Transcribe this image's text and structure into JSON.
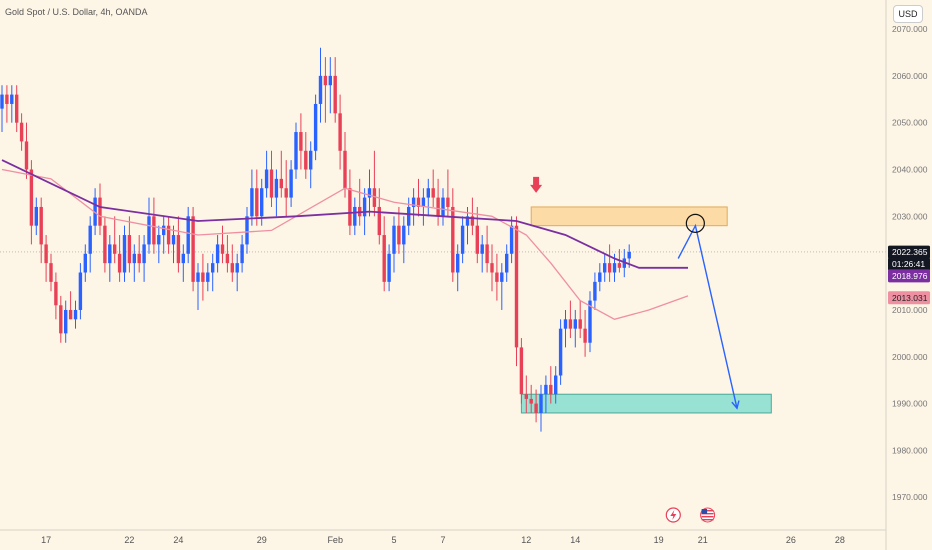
{
  "header": {
    "title": "Gold Spot / U.S. Dollar, 4h, OANDA",
    "currency_button": "USD"
  },
  "chart_data": {
    "type": "candlestick",
    "title": "Gold Spot / U.S. Dollar, 4h, OANDA",
    "ylim": [
      1963,
      2073
    ],
    "y_ticks": [
      1970,
      1980,
      1990,
      2000,
      2010,
      2020,
      2030,
      2040,
      2050,
      2060,
      2070
    ],
    "y_tick_labels": [
      "1970.000",
      "1980.000",
      "1990.000",
      "2000.000",
      "2010.000",
      "2020.000",
      "2030.000",
      "2040.000",
      "2050.000",
      "2060.000",
      "2070.000"
    ],
    "x_ticks": [
      {
        "label": "17",
        "bar": 9
      },
      {
        "label": "22",
        "bar": 26
      },
      {
        "label": "24",
        "bar": 36
      },
      {
        "label": "29",
        "bar": 53
      },
      {
        "label": "Feb",
        "bar": 68
      },
      {
        "label": "5",
        "bar": 80
      },
      {
        "label": "7",
        "bar": 90
      },
      {
        "label": "12",
        "bar": 107
      },
      {
        "label": "14",
        "bar": 117
      },
      {
        "label": "19",
        "bar": 134
      },
      {
        "label": "21",
        "bar": 143
      },
      {
        "label": "26",
        "bar": 161
      },
      {
        "label": "28",
        "bar": 171
      }
    ],
    "grid": false,
    "colors": {
      "up": "#2962ff",
      "down": "#e84157",
      "ma_slow": "#7b2fa0",
      "ma_fast": "#ef8fa2",
      "resistance_zone": "#fcd9a0",
      "support_zone": "#8ee0d2",
      "projection": "#2962ff",
      "marker": "#e84157"
    },
    "price_labels": [
      {
        "text": "2022.365",
        "value": 2022.365,
        "bg": "#131722",
        "fg": "#ffffff"
      },
      {
        "text": "01:26:41",
        "value": 2022.365,
        "bg": "#131722",
        "fg": "#ffffff",
        "sub": true
      },
      {
        "text": "2018.976",
        "value": 2018.976,
        "bg": "#7b2fa0",
        "fg": "#ffffff"
      },
      {
        "text": "2013.031",
        "value": 2013.031,
        "bg": "#ef8fa2",
        "fg": "#222222"
      }
    ],
    "candles": [
      [
        2053,
        2058,
        2048,
        2056
      ],
      [
        2056,
        2058,
        2050,
        2054
      ],
      [
        2054,
        2058,
        2050,
        2056
      ],
      [
        2056,
        2058,
        2048,
        2050
      ],
      [
        2050,
        2052,
        2044,
        2046
      ],
      [
        2046,
        2050,
        2038,
        2040
      ],
      [
        2040,
        2042,
        2024,
        2028
      ],
      [
        2028,
        2034,
        2026,
        2032
      ],
      [
        2032,
        2034,
        2020,
        2024
      ],
      [
        2024,
        2026,
        2016,
        2020
      ],
      [
        2020,
        2022,
        2014,
        2016
      ],
      [
        2016,
        2018,
        2008,
        2011
      ],
      [
        2011,
        2013,
        2003,
        2005
      ],
      [
        2005,
        2012,
        2003,
        2010
      ],
      [
        2010,
        2014,
        2008,
        2008
      ],
      [
        2008,
        2012,
        2006,
        2010
      ],
      [
        2010,
        2020,
        2008,
        2018
      ],
      [
        2018,
        2024,
        2016,
        2022
      ],
      [
        2022,
        2030,
        2018,
        2028
      ],
      [
        2028,
        2036,
        2026,
        2034
      ],
      [
        2034,
        2037,
        2026,
        2028
      ],
      [
        2028,
        2030,
        2018,
        2020
      ],
      [
        2020,
        2026,
        2016,
        2024
      ],
      [
        2024,
        2030,
        2020,
        2022
      ],
      [
        2022,
        2026,
        2016,
        2018
      ],
      [
        2018,
        2028,
        2016,
        2026
      ],
      [
        2026,
        2030,
        2018,
        2020
      ],
      [
        2020,
        2024,
        2016,
        2022
      ],
      [
        2022,
        2026,
        2018,
        2020
      ],
      [
        2020,
        2026,
        2016,
        2024
      ],
      [
        2024,
        2034,
        2022,
        2030
      ],
      [
        2030,
        2034,
        2022,
        2024
      ],
      [
        2024,
        2028,
        2020,
        2026
      ],
      [
        2026,
        2030,
        2022,
        2028
      ],
      [
        2028,
        2030,
        2022,
        2024
      ],
      [
        2024,
        2028,
        2020,
        2026
      ],
      [
        2026,
        2030,
        2018,
        2020
      ],
      [
        2020,
        2024,
        2016,
        2022
      ],
      [
        2022,
        2032,
        2020,
        2030
      ],
      [
        2030,
        2032,
        2014,
        2016
      ],
      [
        2016,
        2020,
        2010,
        2018
      ],
      [
        2018,
        2022,
        2012,
        2016
      ],
      [
        2016,
        2020,
        2014,
        2018
      ],
      [
        2018,
        2022,
        2014,
        2020
      ],
      [
        2020,
        2026,
        2018,
        2024
      ],
      [
        2024,
        2028,
        2020,
        2022
      ],
      [
        2022,
        2026,
        2018,
        2020
      ],
      [
        2020,
        2024,
        2016,
        2018
      ],
      [
        2018,
        2022,
        2014,
        2020
      ],
      [
        2020,
        2026,
        2018,
        2024
      ],
      [
        2024,
        2032,
        2022,
        2030
      ],
      [
        2030,
        2040,
        2028,
        2036
      ],
      [
        2036,
        2040,
        2028,
        2030
      ],
      [
        2030,
        2038,
        2028,
        2036
      ],
      [
        2036,
        2044,
        2034,
        2040
      ],
      [
        2040,
        2044,
        2032,
        2034
      ],
      [
        2034,
        2040,
        2030,
        2038
      ],
      [
        2038,
        2044,
        2034,
        2036
      ],
      [
        2036,
        2042,
        2030,
        2034
      ],
      [
        2034,
        2042,
        2032,
        2040
      ],
      [
        2040,
        2050,
        2038,
        2048
      ],
      [
        2048,
        2052,
        2040,
        2044
      ],
      [
        2044,
        2048,
        2038,
        2040
      ],
      [
        2040,
        2046,
        2036,
        2044
      ],
      [
        2044,
        2056,
        2042,
        2054
      ],
      [
        2054,
        2066,
        2050,
        2060
      ],
      [
        2060,
        2064,
        2050,
        2058
      ],
      [
        2058,
        2064,
        2052,
        2060
      ],
      [
        2060,
        2064,
        2050,
        2052
      ],
      [
        2052,
        2056,
        2040,
        2044
      ],
      [
        2044,
        2048,
        2034,
        2036
      ],
      [
        2036,
        2040,
        2026,
        2028
      ],
      [
        2028,
        2034,
        2026,
        2032
      ],
      [
        2032,
        2038,
        2028,
        2030
      ],
      [
        2030,
        2036,
        2026,
        2034
      ],
      [
        2034,
        2040,
        2030,
        2036
      ],
      [
        2036,
        2044,
        2030,
        2032
      ],
      [
        2032,
        2036,
        2024,
        2026
      ],
      [
        2026,
        2030,
        2014,
        2016
      ],
      [
        2016,
        2024,
        2014,
        2022
      ],
      [
        2022,
        2030,
        2018,
        2028
      ],
      [
        2028,
        2032,
        2022,
        2024
      ],
      [
        2024,
        2030,
        2020,
        2028
      ],
      [
        2028,
        2034,
        2026,
        2032
      ],
      [
        2032,
        2036,
        2028,
        2034
      ],
      [
        2034,
        2038,
        2030,
        2032
      ],
      [
        2032,
        2036,
        2028,
        2034
      ],
      [
        2034,
        2038,
        2030,
        2036
      ],
      [
        2036,
        2040,
        2032,
        2034
      ],
      [
        2034,
        2038,
        2028,
        2030
      ],
      [
        2030,
        2036,
        2028,
        2034
      ],
      [
        2034,
        2040,
        2030,
        2032
      ],
      [
        2032,
        2036,
        2016,
        2018
      ],
      [
        2018,
        2024,
        2014,
        2022
      ],
      [
        2022,
        2030,
        2020,
        2028
      ],
      [
        2028,
        2032,
        2024,
        2030
      ],
      [
        2030,
        2034,
        2026,
        2028
      ],
      [
        2028,
        2032,
        2020,
        2022
      ],
      [
        2022,
        2026,
        2018,
        2024
      ],
      [
        2024,
        2028,
        2018,
        2020
      ],
      [
        2020,
        2024,
        2014,
        2018
      ],
      [
        2018,
        2022,
        2012,
        2016
      ],
      [
        2016,
        2020,
        2010,
        2018
      ],
      [
        2018,
        2024,
        2016,
        2022
      ],
      [
        2022,
        2030,
        2020,
        2028
      ],
      [
        2028,
        2030,
        1998,
        2002
      ],
      [
        2002,
        2004,
        1990,
        1992
      ],
      [
        1992,
        1996,
        1988,
        1991
      ],
      [
        1991,
        1994,
        1988,
        1990
      ],
      [
        1990,
        1993,
        1986,
        1988
      ],
      [
        1988,
        1994,
        1984,
        1992
      ],
      [
        1992,
        1996,
        1988,
        1994
      ],
      [
        1994,
        1998,
        1990,
        1992
      ],
      [
        1992,
        1998,
        1990,
        1996
      ],
      [
        1996,
        2008,
        1994,
        2006
      ],
      [
        2006,
        2010,
        2002,
        2008
      ],
      [
        2008,
        2012,
        2004,
        2006
      ],
      [
        2006,
        2010,
        2002,
        2008
      ],
      [
        2008,
        2012,
        2004,
        2006
      ],
      [
        2006,
        2010,
        2000,
        2003
      ],
      [
        2003,
        2014,
        2001,
        2012
      ],
      [
        2012,
        2018,
        2010,
        2016
      ],
      [
        2016,
        2020,
        2014,
        2018
      ],
      [
        2018,
        2022,
        2016,
        2020
      ],
      [
        2020,
        2024,
        2016,
        2018
      ],
      [
        2018,
        2022,
        2016,
        2020
      ],
      [
        2020,
        2023,
        2018,
        2019
      ],
      [
        2019,
        2023,
        2017,
        2021
      ],
      [
        2021,
        2024,
        2019,
        2022.4
      ]
    ],
    "ma_slow": [
      [
        0,
        2042
      ],
      [
        20,
        2032
      ],
      [
        40,
        2029
      ],
      [
        60,
        2030
      ],
      [
        75,
        2031
      ],
      [
        90,
        2030
      ],
      [
        105,
        2029
      ],
      [
        115,
        2026
      ],
      [
        125,
        2021
      ],
      [
        130,
        2019
      ],
      [
        140,
        2019
      ]
    ],
    "ma_fast": [
      [
        0,
        2040
      ],
      [
        10,
        2038
      ],
      [
        20,
        2030
      ],
      [
        40,
        2026
      ],
      [
        55,
        2027
      ],
      [
        70,
        2036
      ],
      [
        80,
        2033
      ],
      [
        100,
        2030
      ],
      [
        107,
        2026
      ],
      [
        112,
        2020
      ],
      [
        118,
        2012
      ],
      [
        125,
        2008
      ],
      [
        132,
        2010
      ],
      [
        140,
        2013
      ]
    ],
    "zones": [
      {
        "name": "resistance",
        "bar_from": 108,
        "bar_to": 148,
        "y_low": 2028,
        "y_high": 2032
      },
      {
        "name": "support",
        "bar_from": 106,
        "bar_to": 157,
        "y_low": 1988,
        "y_high": 1992
      }
    ],
    "projection": [
      [
        138,
        2021
      ],
      [
        141.5,
        2028
      ],
      [
        150,
        1989
      ]
    ],
    "circle_marker": {
      "bar": 141.5,
      "y": 2028.5
    },
    "down_arrow_marker": {
      "bar": 109,
      "y": 2035
    },
    "event_icons": [
      {
        "name": "lightning-icon",
        "bar": 137
      },
      {
        "name": "us-flag-icon",
        "bar": 144
      }
    ]
  }
}
